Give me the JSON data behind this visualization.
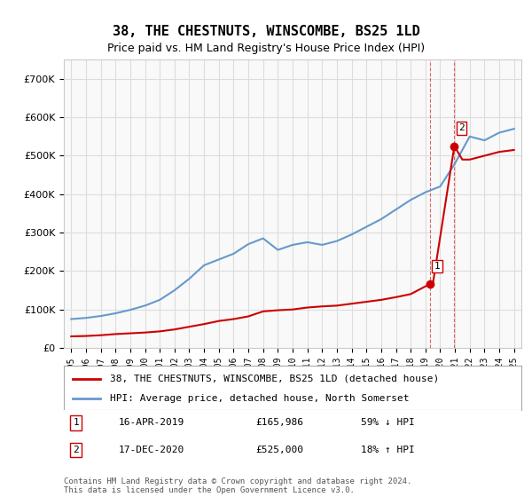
{
  "title": "38, THE CHESTNUTS, WINSCOMBE, BS25 1LD",
  "subtitle": "Price paid vs. HM Land Registry's House Price Index (HPI)",
  "hpi_label": "HPI: Average price, detached house, North Somerset",
  "property_label": "38, THE CHESTNUTS, WINSCOMBE, BS25 1LD (detached house)",
  "footer": "Contains HM Land Registry data © Crown copyright and database right 2024.\nThis data is licensed under the Open Government Licence v3.0.",
  "sale1_date": "16-APR-2019",
  "sale1_price": "£165,986",
  "sale1_hpi": "59% ↓ HPI",
  "sale2_date": "17-DEC-2020",
  "sale2_price": "£525,000",
  "sale2_hpi": "18% ↑ HPI",
  "hpi_color": "#6699cc",
  "property_color": "#cc0000",
  "sale1_marker_x": 2019.29,
  "sale1_marker_y": 165986,
  "sale2_marker_x": 2020.96,
  "sale2_marker_y": 525000,
  "ylim": [
    0,
    750000
  ],
  "xlim": [
    1994.5,
    2025.5
  ],
  "bg_color": "#ffffff",
  "plot_bg": "#f9f9f9",
  "grid_color": "#dddddd",
  "hpi_data": [
    [
      1995,
      75000
    ],
    [
      1996,
      78000
    ],
    [
      1997,
      83000
    ],
    [
      1998,
      90000
    ],
    [
      1999,
      99000
    ],
    [
      2000,
      110000
    ],
    [
      2001,
      125000
    ],
    [
      2002,
      150000
    ],
    [
      2003,
      180000
    ],
    [
      2004,
      215000
    ],
    [
      2005,
      230000
    ],
    [
      2006,
      245000
    ],
    [
      2007,
      270000
    ],
    [
      2008,
      285000
    ],
    [
      2009,
      255000
    ],
    [
      2010,
      268000
    ],
    [
      2011,
      275000
    ],
    [
      2012,
      268000
    ],
    [
      2013,
      278000
    ],
    [
      2014,
      295000
    ],
    [
      2015,
      315000
    ],
    [
      2016,
      335000
    ],
    [
      2017,
      360000
    ],
    [
      2018,
      385000
    ],
    [
      2019,
      405000
    ],
    [
      2020,
      420000
    ],
    [
      2021,
      480000
    ],
    [
      2022,
      550000
    ],
    [
      2023,
      540000
    ],
    [
      2024,
      560000
    ],
    [
      2025,
      570000
    ]
  ],
  "property_data": [
    [
      1995,
      30000
    ],
    [
      1996,
      31000
    ],
    [
      1997,
      33000
    ],
    [
      1998,
      36000
    ],
    [
      1999,
      38000
    ],
    [
      2000,
      40000
    ],
    [
      2001,
      43000
    ],
    [
      2002,
      48000
    ],
    [
      2003,
      55000
    ],
    [
      2004,
      62000
    ],
    [
      2005,
      70000
    ],
    [
      2006,
      75000
    ],
    [
      2007,
      82000
    ],
    [
      2008,
      95000
    ],
    [
      2009,
      98000
    ],
    [
      2010,
      100000
    ],
    [
      2011,
      105000
    ],
    [
      2012,
      108000
    ],
    [
      2013,
      110000
    ],
    [
      2014,
      115000
    ],
    [
      2015,
      120000
    ],
    [
      2016,
      125000
    ],
    [
      2017,
      132000
    ],
    [
      2018,
      140000
    ],
    [
      2019.29,
      165986
    ],
    [
      2019.5,
      165986
    ],
    [
      2020.96,
      525000
    ],
    [
      2021.5,
      490000
    ],
    [
      2022,
      490000
    ],
    [
      2023,
      500000
    ],
    [
      2024,
      510000
    ],
    [
      2025,
      515000
    ]
  ]
}
